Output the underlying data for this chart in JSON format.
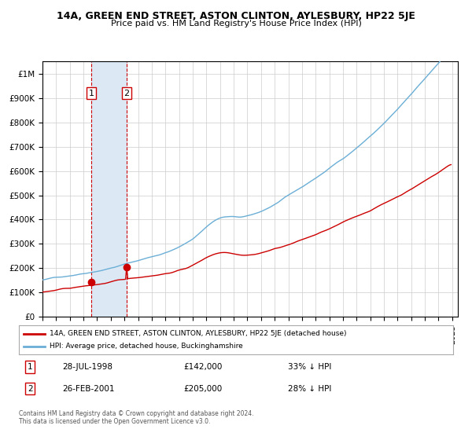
{
  "title": "14A, GREEN END STREET, ASTON CLINTON, AYLESBURY, HP22 5JE",
  "subtitle": "Price paid vs. HM Land Registry's House Price Index (HPI)",
  "legend_line1": "14A, GREEN END STREET, ASTON CLINTON, AYLESBURY, HP22 5JE (detached house)",
  "legend_line2": "HPI: Average price, detached house, Buckinghamshire",
  "transaction1_label": "1",
  "transaction1_date": "28-JUL-1998",
  "transaction1_price": 142000,
  "transaction1_note": "33% ↓ HPI",
  "transaction2_label": "2",
  "transaction2_date": "26-FEB-2001",
  "transaction2_price": 205000,
  "transaction2_note": "28% ↓ HPI",
  "footnote": "Contains HM Land Registry data © Crown copyright and database right 2024.\nThis data is licensed under the Open Government Licence v3.0.",
  "hpi_color": "#6baed6",
  "price_color": "#cc0000",
  "transaction_marker_color": "#cc0000",
  "shading_color": "#dce9f5",
  "vline_color": "#cc0000",
  "grid_color": "#cccccc",
  "background_color": "#ffffff",
  "ylim": [
    0,
    1050000
  ],
  "yticks": [
    0,
    100000,
    200000,
    300000,
    400000,
    500000,
    600000,
    700000,
    800000,
    900000,
    1000000
  ],
  "ytick_labels": [
    "£0",
    "£100K",
    "£200K",
    "£300K",
    "£400K",
    "£500K",
    "£600K",
    "£700K",
    "£800K",
    "£900K",
    "£1M"
  ]
}
